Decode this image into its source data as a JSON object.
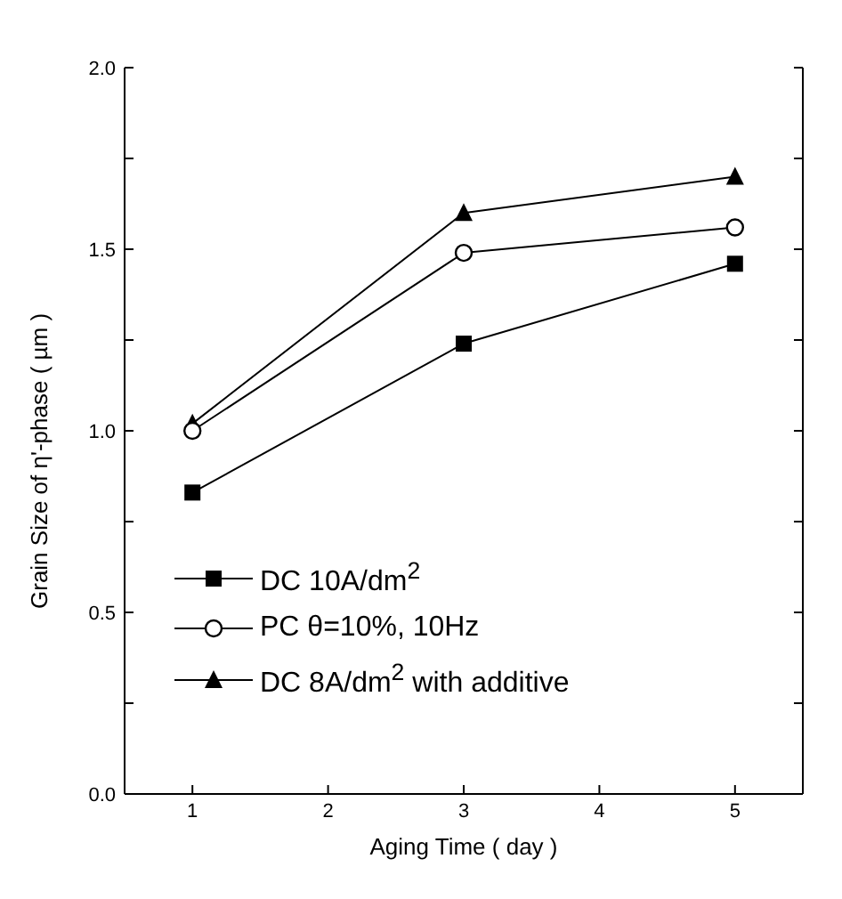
{
  "chart_data": {
    "type": "line",
    "xlabel": "Aging Time ( day )",
    "ylabel": "Grain Size of η'-phase ( µm )",
    "x": [
      1,
      3,
      5
    ],
    "series": [
      {
        "name": "DC 10A/dm$^{2}$",
        "color": "#000000",
        "marker": "square",
        "values": [
          0.83,
          1.24,
          1.46
        ]
      },
      {
        "name": "PC θ=10%, 10Hz",
        "color": "#000000",
        "marker": "circle",
        "values": [
          1.0,
          1.49,
          1.56
        ]
      },
      {
        "name": "DC 8A/dm$^{2}$ with additive",
        "color": "#000000",
        "marker": "triangle",
        "values": [
          1.02,
          1.6,
          1.7
        ]
      }
    ],
    "xlim": [
      0.5,
      5.5
    ],
    "xticks": [
      1,
      2,
      3,
      4,
      5
    ],
    "ylim": [
      0,
      2
    ],
    "yticks": [
      {
        "value": 0,
        "label": "0.0"
      },
      {
        "value": 0.25,
        "label": null
      },
      {
        "value": 0.5,
        "label": "0.5"
      },
      {
        "value": 0.75,
        "label": null
      },
      {
        "value": 1,
        "label": "1.0"
      },
      {
        "value": 1.25,
        "label": null
      },
      {
        "value": 1.5,
        "label": "1.5"
      },
      {
        "value": 1.75,
        "label": null
      },
      {
        "value": 2,
        "label": "2.0"
      }
    ],
    "grid": false,
    "legend": "bottom left",
    "line_style": "solid"
  }
}
